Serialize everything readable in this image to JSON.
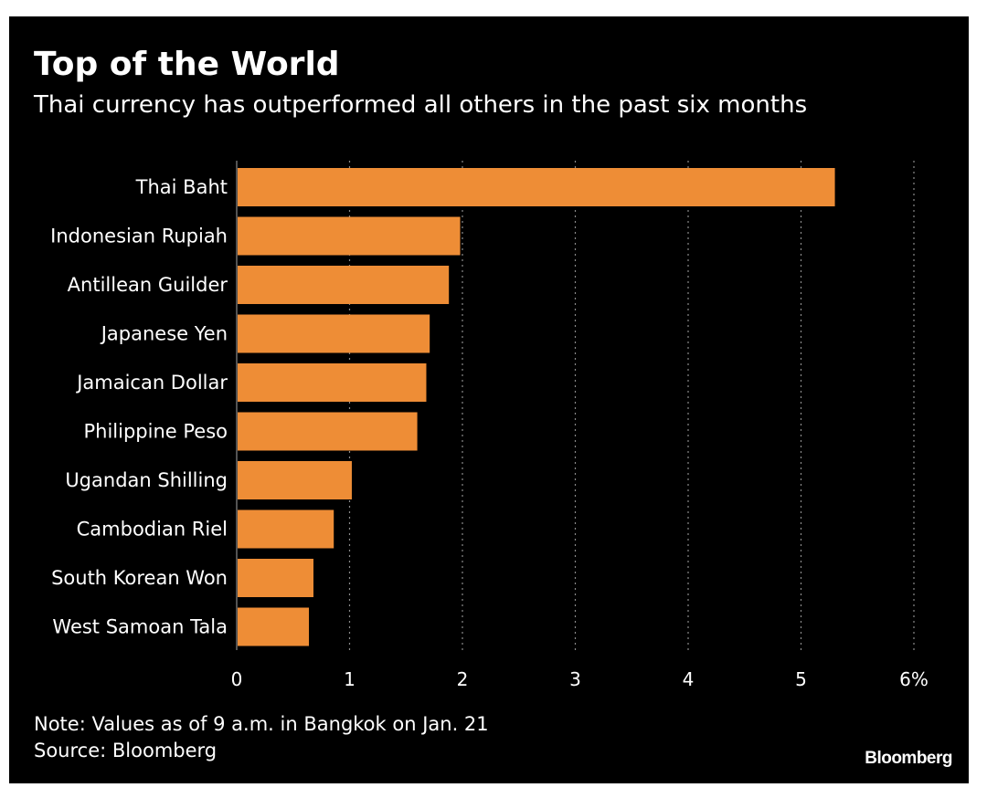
{
  "chart_data": {
    "type": "bar",
    "orientation": "horizontal",
    "title": "Top of the World",
    "subtitle": "Thai currency has outperformed all others in the past six months",
    "categories": [
      "Thai Baht",
      "Indonesian Rupiah",
      "Antillean Guilder",
      "Japanese Yen",
      "Jamaican Dollar",
      "Philippine Peso",
      "Ugandan Shilling",
      "Cambodian Riel",
      "South Korean Won",
      "West Samoan Tala"
    ],
    "values": [
      5.3,
      1.98,
      1.88,
      1.71,
      1.68,
      1.6,
      1.02,
      0.86,
      0.68,
      0.64
    ],
    "xlim": [
      0,
      6
    ],
    "xticks": [
      0,
      1,
      2,
      3,
      4,
      5,
      6
    ],
    "xtick_labels": [
      "0",
      "1",
      "2",
      "3",
      "4",
      "5",
      "6%"
    ],
    "grid": true,
    "colors": {
      "bar": "#ee8d36",
      "background": "#000000",
      "text": "#ffffff",
      "grid": "#8a8a8a"
    }
  },
  "note": "Note: Values as of 9 a.m. in Bangkok on Jan. 21",
  "source": "Source: Bloomberg",
  "brand": "Bloomberg"
}
